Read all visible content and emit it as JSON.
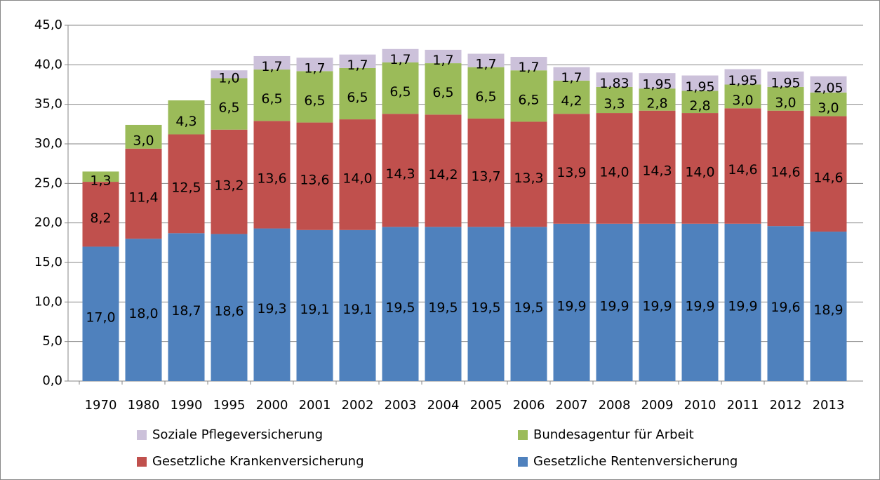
{
  "chart_data": {
    "type": "stacked_bar",
    "categories": [
      "1970",
      "1980",
      "1990",
      "1995",
      "2000",
      "2001",
      "2002",
      "2003",
      "2004",
      "2005",
      "2006",
      "2007",
      "2008",
      "2009",
      "2010",
      "2011",
      "2012",
      "2013"
    ],
    "series": [
      {
        "name": "Gesetzliche Rentenversicherung",
        "color": "#4f81bd",
        "values": [
          17.0,
          18.0,
          18.7,
          18.6,
          19.3,
          19.1,
          19.1,
          19.5,
          19.5,
          19.5,
          19.5,
          19.9,
          19.9,
          19.9,
          19.9,
          19.9,
          19.6,
          18.9
        ],
        "value_labels": [
          "17,0",
          "18,0",
          "18,7",
          "18,6",
          "19,3",
          "19,1",
          "19,1",
          "19,5",
          "19,5",
          "19,5",
          "19,5",
          "19,9",
          "19,9",
          "19,9",
          "19,9",
          "19,9",
          "19,6",
          "18,9"
        ]
      },
      {
        "name": "Gesetzliche Krankenversicherung",
        "color": "#c0504d",
        "values": [
          8.2,
          11.4,
          12.5,
          13.2,
          13.6,
          13.6,
          14.0,
          14.3,
          14.2,
          13.7,
          13.3,
          13.9,
          14.0,
          14.3,
          14.0,
          14.6,
          14.6,
          14.6
        ],
        "value_labels": [
          "8,2",
          "11,4",
          "12,5",
          "13,2",
          "13,6",
          "13,6",
          "14,0",
          "14,3",
          "14,2",
          "13,7",
          "13,3",
          "13,9",
          "14,0",
          "14,3",
          "14,0",
          "14,6",
          "14,6",
          "14,6"
        ]
      },
      {
        "name": "Bundesagentur für Arbeit",
        "color": "#9bbb59",
        "values": [
          1.3,
          3.0,
          4.3,
          6.5,
          6.5,
          6.5,
          6.5,
          6.5,
          6.5,
          6.5,
          6.5,
          4.2,
          3.3,
          2.8,
          2.8,
          3.0,
          3.0,
          3.0
        ],
        "value_labels": [
          "1,3",
          "3,0",
          "4,3",
          "6,5",
          "6,5",
          "6,5",
          "6,5",
          "6,5",
          "6,5",
          "6,5",
          "6,5",
          "4,2",
          "3,3",
          "2,8",
          "2,8",
          "3,0",
          "3,0",
          "3,0"
        ]
      },
      {
        "name": "Soziale Pflegeversicherung",
        "color": "#ccc1da",
        "values": [
          null,
          null,
          null,
          1.0,
          1.7,
          1.7,
          1.7,
          1.7,
          1.7,
          1.7,
          1.7,
          1.7,
          1.83,
          1.95,
          1.95,
          1.95,
          1.95,
          2.05
        ],
        "value_labels": [
          null,
          null,
          null,
          "1,0",
          "1,7",
          "1,7",
          "1,7",
          "1,7",
          "1,7",
          "1,7",
          "1,7",
          "1,7",
          "1,83",
          "1,95",
          "1,95",
          "1,95",
          "1,95",
          "2,05"
        ]
      }
    ],
    "ylim": [
      0,
      45
    ],
    "yticks": [
      {
        "value": 0,
        "label": "0,0"
      },
      {
        "value": 5,
        "label": "5,0"
      },
      {
        "value": 10,
        "label": "10,0"
      },
      {
        "value": 15,
        "label": "15,0"
      },
      {
        "value": 20,
        "label": "20,0"
      },
      {
        "value": 25,
        "label": "25,0"
      },
      {
        "value": 30,
        "label": "30,0"
      },
      {
        "value": 35,
        "label": "35,0"
      },
      {
        "value": 40,
        "label": "40,0"
      },
      {
        "value": 45,
        "label": "45,0"
      }
    ],
    "grid": true,
    "legend": "bottom"
  }
}
